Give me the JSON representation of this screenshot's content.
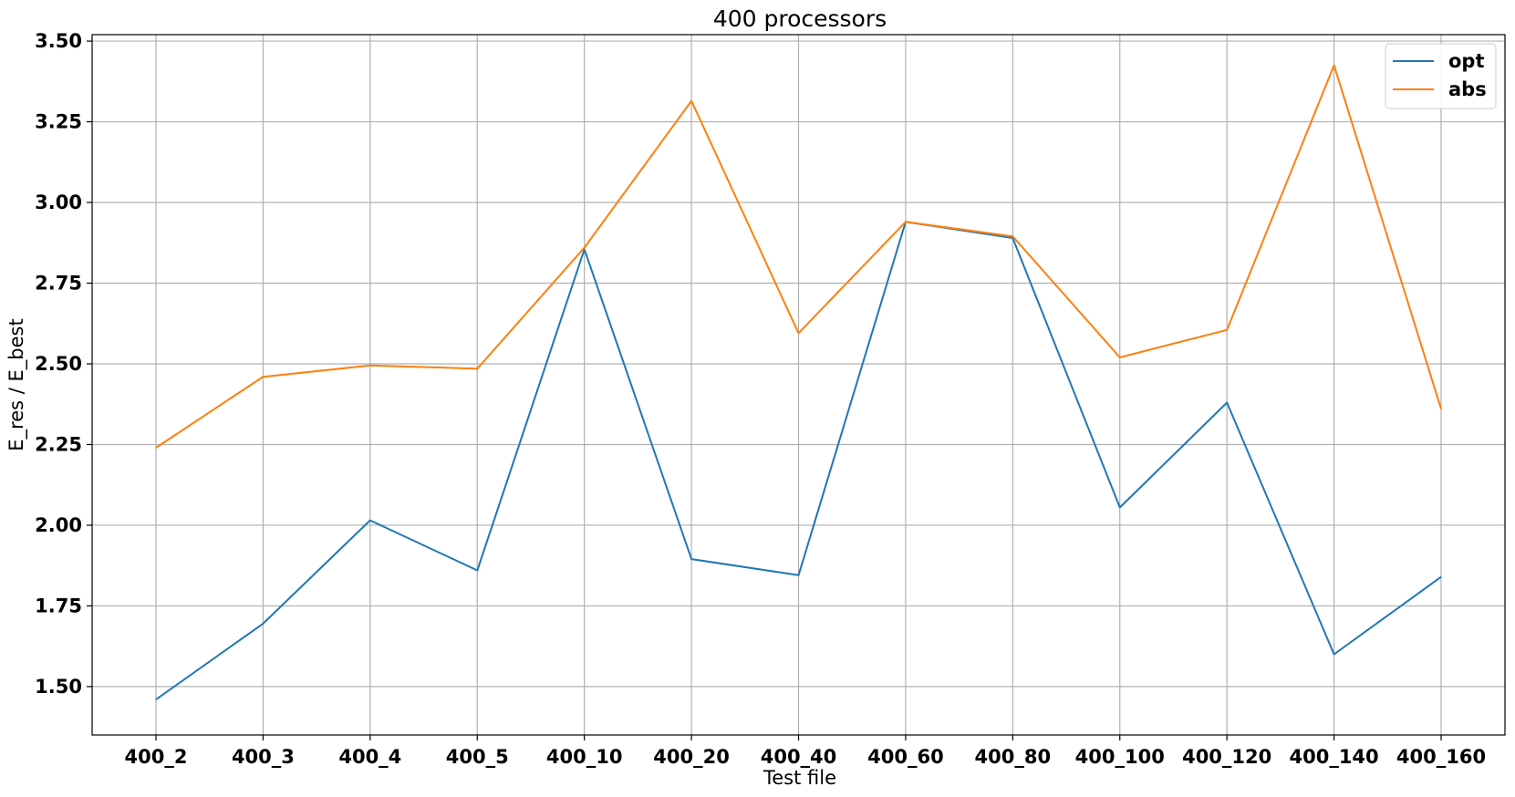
{
  "chart_data": {
    "type": "line",
    "title": "400 processors",
    "xlabel": "Test file",
    "ylabel": "E_res / E_best",
    "categories": [
      "400_2",
      "400_3",
      "400_4",
      "400_5",
      "400_10",
      "400_20",
      "400_40",
      "400_60",
      "400_80",
      "400_100",
      "400_120",
      "400_140",
      "400_160"
    ],
    "series": [
      {
        "name": "opt",
        "color": "#1f77b4",
        "values": [
          1.46,
          1.695,
          2.015,
          1.86,
          2.855,
          1.895,
          1.845,
          2.94,
          2.89,
          2.055,
          2.38,
          1.6,
          1.84
        ]
      },
      {
        "name": "abs",
        "color": "#ff7f0e",
        "values": [
          2.24,
          2.46,
          2.495,
          2.485,
          2.86,
          3.315,
          2.595,
          2.94,
          2.895,
          2.52,
          2.605,
          3.425,
          2.36
        ]
      }
    ],
    "ylim": [
      1.35,
      3.52
    ],
    "yticks": [
      "1.50",
      "1.75",
      "2.00",
      "2.25",
      "2.50",
      "2.75",
      "3.00",
      "3.25",
      "3.50"
    ],
    "grid": true,
    "legend_position": "top-right"
  }
}
